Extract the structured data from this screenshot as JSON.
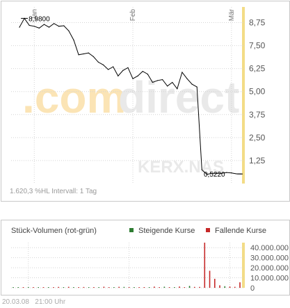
{
  "price_chart": {
    "watermark": {
      "part1": ".com",
      "part2": "direct"
    },
    "symbol_watermark": "KERX.NAS",
    "info_text": "1.620,3 %HL  Intervall: 1 Tag",
    "high_label": "8,9800",
    "last_label": "0,5220",
    "colors": {
      "line": "#000000",
      "grid": "#d4d4d4",
      "highlight": "#f3dc86",
      "watermark_orange": "#fbe4b5",
      "watermark_gray": "#e9e9e9"
    }
  },
  "volume_chart": {
    "title": "Stück-Volumen (rot-grün)",
    "legend_up": "Steigende Kurse",
    "legend_down": "Fallende Kurse",
    "colors": {
      "up": "#2e7d32",
      "down": "#c62828"
    }
  },
  "footer": {
    "date": "20.03.08",
    "time": "21:00 Uhr"
  },
  "chart_data": [
    {
      "type": "line",
      "ylim": [
        0,
        9.6
      ],
      "yticks": [
        1.25,
        2.5,
        3.75,
        5.0,
        6.25,
        7.5,
        8.75
      ],
      "ytick_labels": [
        "1,25",
        "2,50",
        "3,75",
        "5,00",
        "6,25",
        "7,50",
        "8,75"
      ],
      "xticks": [
        {
          "label": "Jan",
          "index": 3
        },
        {
          "label": "Feb",
          "index": 23
        },
        {
          "label": "Mär",
          "index": 43
        }
      ],
      "series": [
        {
          "values": [
            8.5,
            8.98,
            8.6,
            8.55,
            8.45,
            8.65,
            8.5,
            8.7,
            8.55,
            8.58,
            8.3,
            7.8,
            7.0,
            7.05,
            7.1,
            6.9,
            6.6,
            6.45,
            6.2,
            6.35,
            5.85,
            6.15,
            6.3,
            5.7,
            5.85,
            6.1,
            5.95,
            5.5,
            5.6,
            5.65,
            5.3,
            5.5,
            5.15,
            6.05,
            5.7,
            5.4,
            5.25,
            0.75,
            0.5,
            0.55,
            0.56,
            0.55,
            0.6,
            0.58,
            0.53,
            0.52
          ]
        }
      ],
      "annotations": [
        {
          "text": "8,9800",
          "value": 8.98
        },
        {
          "text": "0,5220",
          "value": 0.522
        }
      ]
    },
    {
      "type": "bar",
      "ylim": [
        0,
        45000000
      ],
      "yticks": [
        0,
        10000000,
        20000000,
        30000000,
        40000000
      ],
      "ytick_labels": [
        "0",
        "10.000.000",
        "20.000.000",
        "30.000.000",
        "40.000.000"
      ],
      "series": [
        {
          "name": "Volumen",
          "values": [
            200000,
            250000,
            180000,
            400000,
            220000,
            300000,
            350000,
            180000,
            260000,
            900000,
            220000,
            1000000,
            500000,
            350000,
            800000,
            600000,
            300000,
            700000,
            1100000,
            450000,
            250000,
            1000000,
            900000,
            600000,
            300000,
            500000,
            200000,
            400000,
            1200000,
            600000,
            1100000,
            400000,
            700000,
            1300000,
            600000,
            1900000,
            900000,
            900000,
            45000000,
            17000000,
            9000000,
            2500000,
            1600000,
            1300000,
            1000000,
            5500000
          ],
          "directions": [
            "u",
            "u",
            "d",
            "u",
            "d",
            "u",
            "d",
            "u",
            "d",
            "d",
            "u",
            "d",
            "u",
            "d",
            "d",
            "u",
            "d",
            "u",
            "d",
            "d",
            "u",
            "d",
            "u",
            "d",
            "u",
            "d",
            "d",
            "u",
            "d",
            "d",
            "u",
            "d",
            "u",
            "d",
            "d",
            "u",
            "d",
            "d",
            "d",
            "d",
            "d",
            "d",
            "u",
            "d",
            "d",
            "d"
          ]
        }
      ]
    }
  ]
}
